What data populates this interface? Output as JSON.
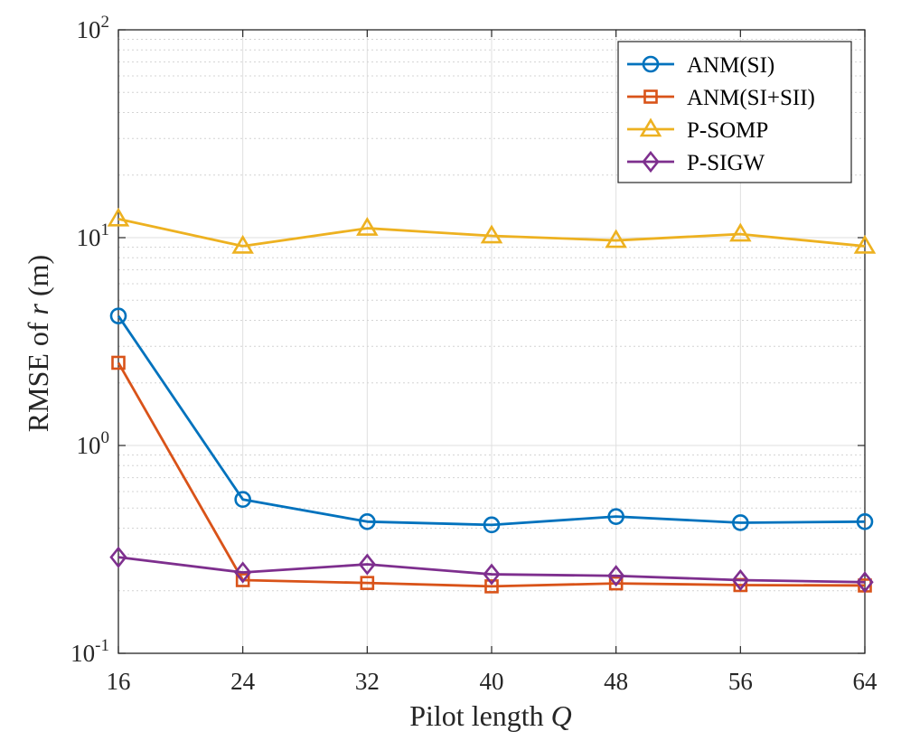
{
  "chart_data": {
    "type": "line",
    "title": "",
    "xlabel": "Pilot length",
    "xlabel_var": "Q",
    "ylabel": "RMSE of",
    "ylabel_var": "r",
    "ylabel_unit": "(m)",
    "yscale": "log",
    "x": [
      16,
      24,
      32,
      40,
      48,
      56,
      64
    ],
    "xlim": [
      16,
      64
    ],
    "ylim": [
      0.1,
      100
    ],
    "x_tick_labels": [
      "16",
      "24",
      "32",
      "40",
      "48",
      "56",
      "64"
    ],
    "y_ticks": [
      {
        "base": "10",
        "exp": "-1"
      },
      {
        "base": "10",
        "exp": "0"
      },
      {
        "base": "10",
        "exp": "1"
      },
      {
        "base": "10",
        "exp": "2"
      }
    ],
    "grid": true,
    "legend_position": "top-right",
    "series": [
      {
        "name": "ANM(SI)",
        "color": "#0072BD",
        "marker": "circle",
        "values": [
          4.2,
          0.55,
          0.43,
          0.415,
          0.455,
          0.425,
          0.43
        ]
      },
      {
        "name": "ANM(SI+SII)",
        "color": "#D95319",
        "marker": "square",
        "values": [
          2.5,
          0.225,
          0.218,
          0.21,
          0.217,
          0.213,
          0.212
        ]
      },
      {
        "name": "P-SOMP",
        "color": "#EDB120",
        "marker": "triangle",
        "values": [
          12.3,
          9.1,
          11.1,
          10.2,
          9.7,
          10.4,
          9.1
        ]
      },
      {
        "name": "P-SIGW",
        "color": "#7E2F8E",
        "marker": "diamond",
        "values": [
          0.29,
          0.245,
          0.268,
          0.24,
          0.236,
          0.225,
          0.22
        ]
      }
    ]
  }
}
